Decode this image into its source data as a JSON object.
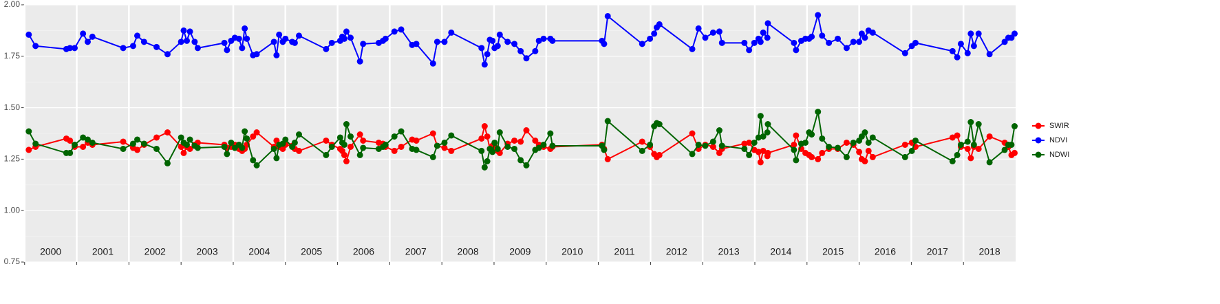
{
  "chart_data": {
    "type": "line",
    "x": [
      2000.08,
      2000.21,
      2000.8,
      2000.87,
      2000.96,
      2001.12,
      2001.21,
      2001.3,
      2001.89,
      2002.08,
      2002.16,
      2002.29,
      2002.53,
      2002.74,
      2003.0,
      2003.05,
      2003.11,
      2003.17,
      2003.26,
      2003.32,
      2003.83,
      2003.88,
      2003.96,
      2004.03,
      2004.11,
      2004.17,
      2004.22,
      2004.26,
      2004.38,
      2004.45,
      2004.78,
      2004.83,
      2004.88,
      2004.95,
      2005.0,
      2005.13,
      2005.18,
      2005.26,
      2005.78,
      2005.89,
      2006.05,
      2006.09,
      2006.13,
      2006.17,
      2006.25,
      2006.43,
      2006.49,
      2006.79,
      2006.87,
      2006.92,
      2007.09,
      2007.22,
      2007.43,
      2007.51,
      2007.83,
      2007.91,
      2008.05,
      2008.18,
      2008.76,
      2008.82,
      2008.87,
      2008.92,
      2008.97,
      2009.01,
      2009.07,
      2009.11,
      2009.26,
      2009.39,
      2009.51,
      2009.62,
      2009.79,
      2009.86,
      2009.95,
      2010.08,
      2010.12,
      2011.07,
      2011.11,
      2011.18,
      2011.84,
      2011.99,
      2012.07,
      2012.12,
      2012.17,
      2012.8,
      2012.92,
      2013.05,
      2013.2,
      2013.32,
      2013.37,
      2013.8,
      2013.89,
      2013.99,
      2014.07,
      2014.11,
      2014.16,
      2014.24,
      2014.25,
      2014.75,
      2014.79,
      2014.89,
      2014.97,
      2015.04,
      2015.09,
      2015.21,
      2015.29,
      2015.42,
      2015.59,
      2015.76,
      2015.89,
      2016.0,
      2016.05,
      2016.11,
      2016.18,
      2016.26,
      2016.88,
      2017.01,
      2017.08,
      2017.79,
      2017.88,
      2017.95,
      2018.08,
      2018.14,
      2018.2,
      2018.29,
      2018.5,
      2018.79,
      2018.86,
      2018.92,
      2018.98
    ],
    "series": [
      {
        "name": "SWIR",
        "color": "#ff0000",
        "values": [
          1.295,
          1.31,
          1.35,
          1.34,
          1.31,
          1.31,
          1.33,
          1.32,
          1.335,
          1.305,
          1.295,
          1.32,
          1.355,
          1.38,
          1.31,
          1.28,
          1.31,
          1.3,
          1.32,
          1.33,
          1.32,
          1.305,
          1.31,
          1.32,
          1.3,
          1.29,
          1.3,
          1.32,
          1.36,
          1.38,
          1.31,
          1.34,
          1.31,
          1.3,
          1.32,
          1.315,
          1.3,
          1.29,
          1.34,
          1.32,
          1.3,
          1.29,
          1.27,
          1.24,
          1.31,
          1.37,
          1.34,
          1.33,
          1.325,
          1.31,
          1.29,
          1.31,
          1.345,
          1.34,
          1.375,
          1.315,
          1.305,
          1.29,
          1.35,
          1.41,
          1.36,
          1.3,
          1.315,
          1.31,
          1.29,
          1.28,
          1.325,
          1.34,
          1.335,
          1.39,
          1.34,
          1.32,
          1.31,
          1.3,
          1.31,
          1.32,
          1.3,
          1.25,
          1.335,
          1.31,
          1.275,
          1.26,
          1.27,
          1.375,
          1.3,
          1.32,
          1.31,
          1.28,
          1.3,
          1.325,
          1.33,
          1.295,
          1.285,
          1.235,
          1.29,
          1.265,
          1.28,
          1.32,
          1.365,
          1.3,
          1.28,
          1.27,
          1.26,
          1.25,
          1.28,
          1.3,
          1.3,
          1.33,
          1.32,
          1.285,
          1.25,
          1.24,
          1.29,
          1.26,
          1.32,
          1.33,
          1.31,
          1.355,
          1.365,
          1.31,
          1.3,
          1.255,
          1.31,
          1.3,
          1.36,
          1.33,
          1.31,
          1.27,
          1.28
        ]
      },
      {
        "name": "NDVI",
        "color": "#0000ff",
        "values": [
          1.855,
          1.8,
          1.785,
          1.79,
          1.79,
          1.86,
          1.82,
          1.845,
          1.79,
          1.8,
          1.85,
          1.82,
          1.795,
          1.76,
          1.82,
          1.875,
          1.825,
          1.87,
          1.82,
          1.79,
          1.815,
          1.78,
          1.825,
          1.84,
          1.835,
          1.79,
          1.885,
          1.835,
          1.755,
          1.76,
          1.82,
          1.755,
          1.855,
          1.82,
          1.835,
          1.82,
          1.815,
          1.85,
          1.785,
          1.815,
          1.825,
          1.845,
          1.835,
          1.87,
          1.84,
          1.725,
          1.81,
          1.815,
          1.825,
          1.835,
          1.87,
          1.88,
          1.805,
          1.81,
          1.715,
          1.82,
          1.82,
          1.865,
          1.79,
          1.71,
          1.76,
          1.83,
          1.825,
          1.79,
          1.8,
          1.855,
          1.82,
          1.81,
          1.775,
          1.74,
          1.775,
          1.825,
          1.835,
          1.835,
          1.825,
          1.825,
          1.81,
          1.945,
          1.81,
          1.835,
          1.86,
          1.89,
          1.905,
          1.785,
          1.885,
          1.84,
          1.865,
          1.87,
          1.815,
          1.815,
          1.78,
          1.815,
          1.835,
          1.82,
          1.865,
          1.84,
          1.91,
          1.815,
          1.78,
          1.825,
          1.835,
          1.835,
          1.845,
          1.95,
          1.85,
          1.815,
          1.835,
          1.79,
          1.82,
          1.82,
          1.86,
          1.84,
          1.875,
          1.865,
          1.765,
          1.8,
          1.815,
          1.775,
          1.745,
          1.81,
          1.765,
          1.86,
          1.8,
          1.86,
          1.76,
          1.82,
          1.84,
          1.84,
          1.86
        ]
      },
      {
        "name": "NDWI",
        "color": "#006400",
        "values": [
          1.385,
          1.325,
          1.28,
          1.28,
          1.32,
          1.355,
          1.345,
          1.33,
          1.3,
          1.325,
          1.345,
          1.325,
          1.3,
          1.23,
          1.355,
          1.33,
          1.32,
          1.345,
          1.315,
          1.305,
          1.31,
          1.275,
          1.33,
          1.305,
          1.32,
          1.305,
          1.385,
          1.35,
          1.245,
          1.22,
          1.3,
          1.255,
          1.32,
          1.325,
          1.345,
          1.31,
          1.33,
          1.37,
          1.27,
          1.31,
          1.355,
          1.33,
          1.32,
          1.42,
          1.36,
          1.27,
          1.305,
          1.3,
          1.31,
          1.32,
          1.36,
          1.385,
          1.3,
          1.295,
          1.26,
          1.315,
          1.33,
          1.365,
          1.29,
          1.21,
          1.24,
          1.3,
          1.285,
          1.33,
          1.3,
          1.38,
          1.31,
          1.3,
          1.245,
          1.22,
          1.295,
          1.305,
          1.32,
          1.375,
          1.315,
          1.315,
          1.295,
          1.435,
          1.29,
          1.32,
          1.41,
          1.425,
          1.42,
          1.275,
          1.32,
          1.315,
          1.335,
          1.39,
          1.315,
          1.3,
          1.27,
          1.33,
          1.355,
          1.46,
          1.36,
          1.38,
          1.42,
          1.295,
          1.245,
          1.325,
          1.33,
          1.38,
          1.37,
          1.48,
          1.35,
          1.31,
          1.305,
          1.26,
          1.33,
          1.34,
          1.36,
          1.38,
          1.33,
          1.355,
          1.26,
          1.29,
          1.34,
          1.24,
          1.27,
          1.32,
          1.335,
          1.43,
          1.32,
          1.42,
          1.235,
          1.295,
          1.32,
          1.32,
          1.41
        ]
      }
    ],
    "xlim": [
      1999.99,
      2019.0
    ],
    "xticks": [
      {
        "value": 2000.5,
        "label": "2000"
      },
      {
        "value": 2001.5,
        "label": "2001"
      },
      {
        "value": 2002.5,
        "label": "2002"
      },
      {
        "value": 2003.5,
        "label": "2003"
      },
      {
        "value": 2004.5,
        "label": "2004"
      },
      {
        "value": 2005.5,
        "label": "2005"
      },
      {
        "value": 2006.5,
        "label": "2006"
      },
      {
        "value": 2007.5,
        "label": "2007"
      },
      {
        "value": 2008.5,
        "label": "2008"
      },
      {
        "value": 2009.5,
        "label": "2009"
      },
      {
        "value": 2010.5,
        "label": "2010"
      },
      {
        "value": 2011.5,
        "label": "2011"
      },
      {
        "value": 2012.5,
        "label": "2012"
      },
      {
        "value": 2013.5,
        "label": "2013"
      },
      {
        "value": 2014.5,
        "label": "2014"
      },
      {
        "value": 2015.5,
        "label": "2015"
      },
      {
        "value": 2016.5,
        "label": "2016"
      },
      {
        "value": 2017.5,
        "label": "2017"
      },
      {
        "value": 2018.5,
        "label": "2018"
      }
    ],
    "ylim": [
      0.75,
      2.0
    ],
    "yticks": [
      {
        "value": 0.75,
        "label": "0.75"
      },
      {
        "value": 1.0,
        "label": "1.00"
      },
      {
        "value": 1.25,
        "label": "1.25"
      },
      {
        "value": 1.5,
        "label": "1.50"
      },
      {
        "value": 1.75,
        "label": "1.75"
      },
      {
        "value": 2.0,
        "label": "2.00"
      }
    ],
    "grid": true,
    "legend": "right"
  }
}
